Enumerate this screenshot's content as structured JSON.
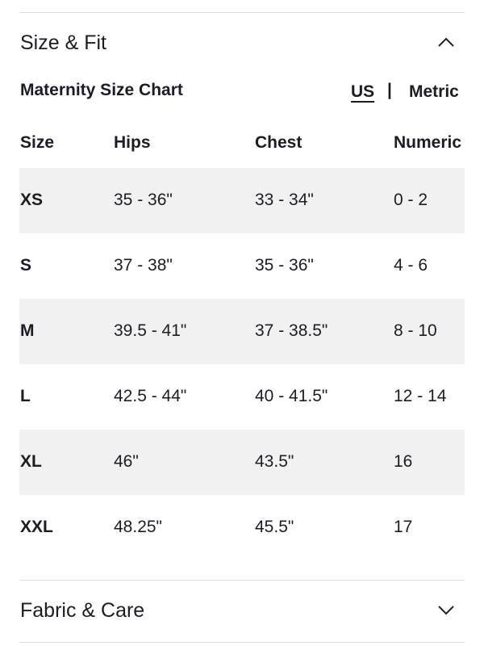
{
  "sections": [
    {
      "title": "Size & Fit"
    },
    {
      "title": "Fabric & Care"
    }
  ],
  "size_chart": {
    "title": "Maternity Size Chart",
    "units": [
      "US",
      "Metric"
    ],
    "separator": "|",
    "columns": [
      "Size",
      "Hips",
      "Chest",
      "Numeric"
    ],
    "rows": [
      [
        "XS",
        "35 - 36\"",
        "33 - 34\"",
        "0 - 2"
      ],
      [
        "S",
        "37 - 38\"",
        "35 - 36\"",
        "4 - 6"
      ],
      [
        "M",
        "39.5 - 41\"",
        "37 - 38.5\"",
        "8 - 10"
      ],
      [
        "L",
        "42.5 - 44\"",
        "40 - 41.5\"",
        "12 - 14"
      ],
      [
        "XL",
        "46\"",
        "43.5\"",
        "16"
      ],
      [
        "XXL",
        "48.25\"",
        "45.5\"",
        "17"
      ]
    ]
  }
}
